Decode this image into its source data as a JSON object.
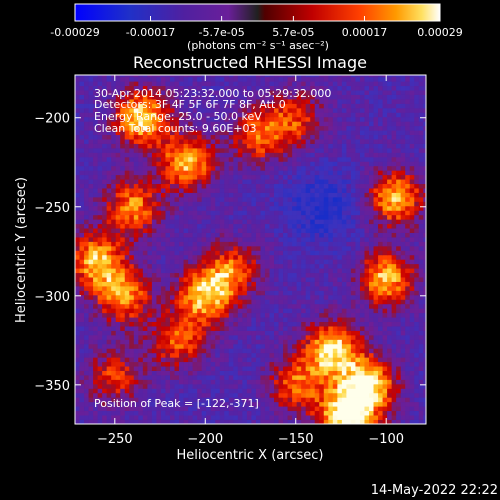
{
  "chart_data": {
    "type": "heatmap",
    "title": "Reconstructed RHESSI Image",
    "xlabel": "Heliocentric X (arcsec)",
    "ylabel": "Heliocentric Y (arcsec)",
    "xlim": [
      -272,
      -78
    ],
    "ylim": [
      -372,
      -176
    ],
    "xticks": [
      -250,
      -200,
      -150,
      -100
    ],
    "yticks": [
      -200,
      -250,
      -300,
      -350
    ],
    "colormap": "rainbow+white",
    "colorbar": {
      "range": [
        -0.00029,
        0.00029
      ],
      "tick_values": [
        -0.00029,
        -0.00017,
        -5.7e-05,
        5.7e-05,
        0.00017,
        0.00029
      ],
      "tick_labels": [
        "-0.00029",
        "-0.00017",
        "-5.7e-05",
        "5.7e-05",
        "0.00017",
        "0.00029"
      ],
      "units_label": "(photons cm⁻² s⁻¹ asec⁻²)"
    },
    "annotations": {
      "time_range": "30-Apr-2014 05:23:32.000 to 05:29:32.000",
      "detectors": "Detectors: 3F 4F 5F 6F 7F 8F, Att 0",
      "energy": "Energy Range: 25.0 - 50.0 keV",
      "clean": "Clean    Total counts: 9.60E+03",
      "peak": "Position of Peak = [-122,-371]"
    },
    "sources": [
      {
        "x": -235,
        "y": -200,
        "amp": 0.9
      },
      {
        "x": -210,
        "y": -225,
        "amp": 0.8
      },
      {
        "x": -240,
        "y": -250,
        "amp": 0.7
      },
      {
        "x": -260,
        "y": -280,
        "amp": 0.8
      },
      {
        "x": -245,
        "y": -300,
        "amp": 0.7
      },
      {
        "x": -200,
        "y": -300,
        "amp": 0.8
      },
      {
        "x": -185,
        "y": -285,
        "amp": 0.6
      },
      {
        "x": -170,
        "y": -210,
        "amp": 0.6
      },
      {
        "x": -150,
        "y": -200,
        "amp": 0.5
      },
      {
        "x": -95,
        "y": -245,
        "amp": 0.8
      },
      {
        "x": -100,
        "y": -290,
        "amp": 0.8
      },
      {
        "x": -130,
        "y": -330,
        "amp": 0.9
      },
      {
        "x": -110,
        "y": -350,
        "amp": 0.9
      },
      {
        "x": -122,
        "y": -368,
        "amp": 1.0
      },
      {
        "x": -150,
        "y": -350,
        "amp": 0.6
      },
      {
        "x": -250,
        "y": -345,
        "amp": 0.5
      },
      {
        "x": -215,
        "y": -325,
        "amp": 0.6
      }
    ]
  },
  "footer": {
    "date": "14-May-2022 22:22"
  }
}
